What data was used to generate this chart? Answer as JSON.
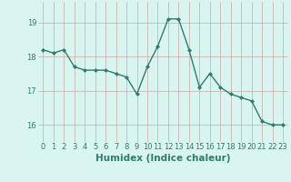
{
  "x": [
    0,
    1,
    2,
    3,
    4,
    5,
    6,
    7,
    8,
    9,
    10,
    11,
    12,
    13,
    14,
    15,
    16,
    17,
    18,
    19,
    20,
    21,
    22,
    23
  ],
  "y": [
    18.2,
    18.1,
    18.2,
    17.7,
    17.6,
    17.6,
    17.6,
    17.5,
    17.4,
    16.9,
    17.7,
    18.3,
    19.1,
    19.1,
    18.2,
    17.1,
    17.5,
    17.1,
    16.9,
    16.8,
    16.7,
    16.1,
    16.0,
    16.0
  ],
  "line_color": "#2e7d6e",
  "marker": "D",
  "marker_size": 2.0,
  "linewidth": 1.0,
  "bg_color": "#d8f5f0",
  "grid_color_v": "#c8a8a8",
  "grid_color_h": "#c8a8a8",
  "xlabel": "Humidex (Indice chaleur)",
  "xlabel_fontsize": 7.5,
  "xlabel_color": "#2e7d6e",
  "tick_color": "#2e7d6e",
  "tick_fontsize": 6.0,
  "ylim": [
    15.5,
    19.6
  ],
  "yticks": [
    16,
    17,
    18,
    19
  ],
  "xticks": [
    0,
    1,
    2,
    3,
    4,
    5,
    6,
    7,
    8,
    9,
    10,
    11,
    12,
    13,
    14,
    15,
    16,
    17,
    18,
    19,
    20,
    21,
    22,
    23
  ]
}
